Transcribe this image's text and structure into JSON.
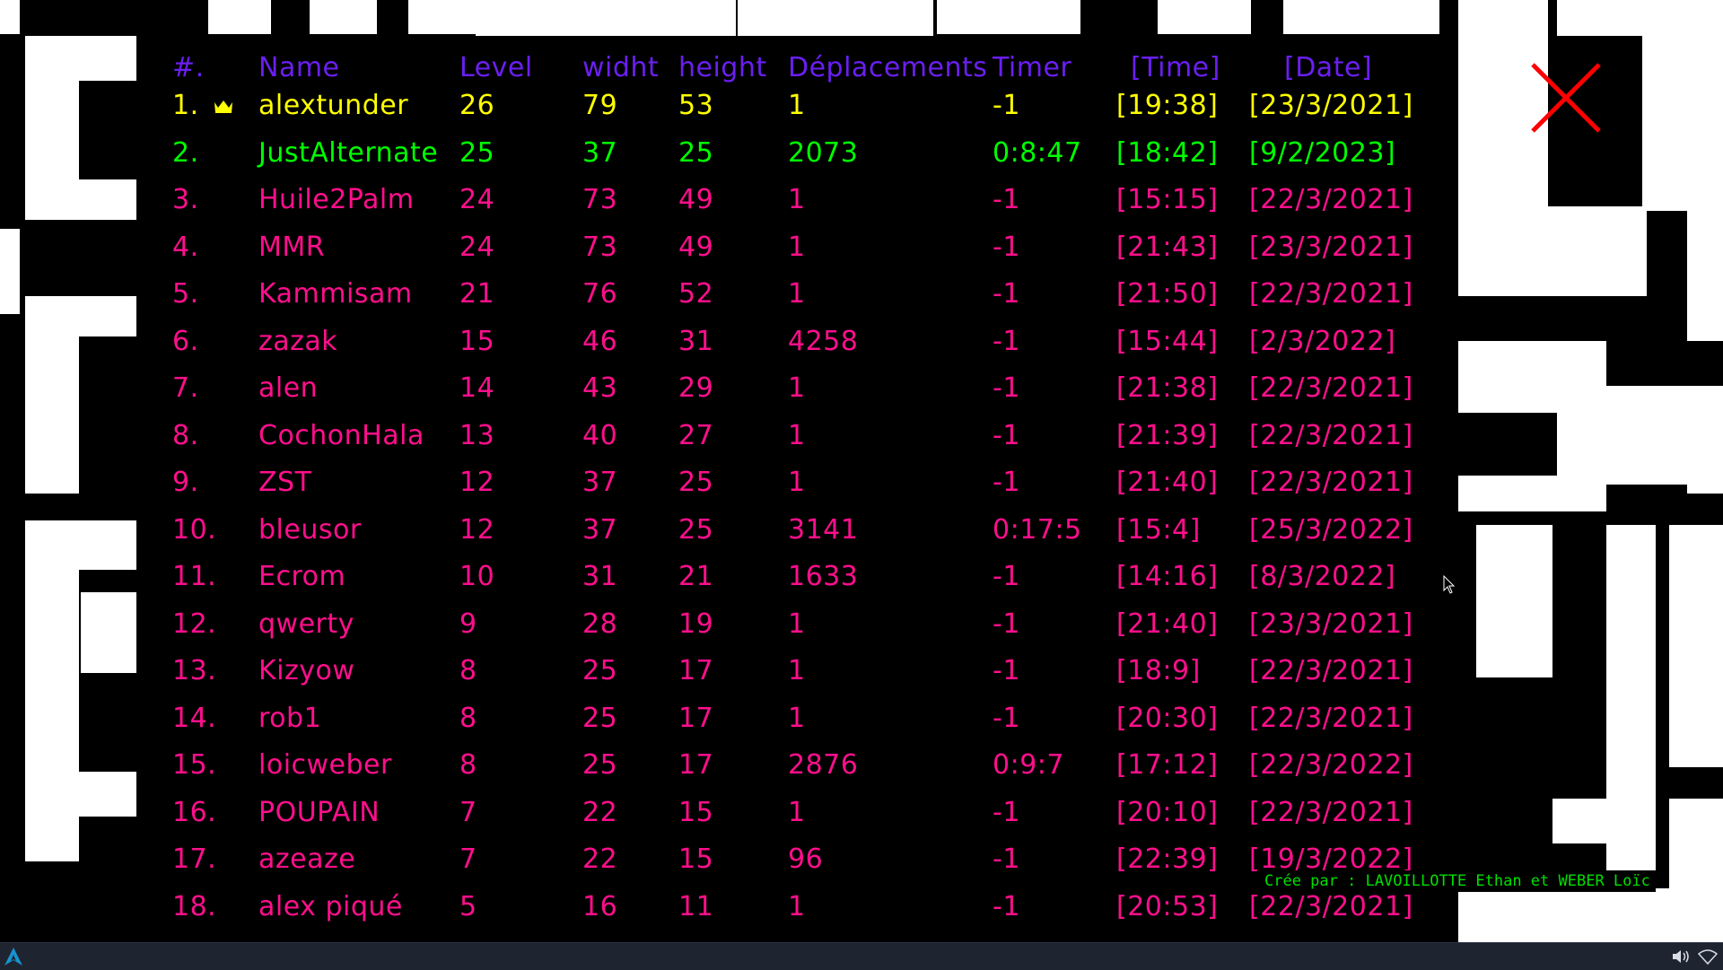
{
  "header": [
    "#.",
    "Name",
    "Level",
    "widht",
    "height",
    "Déplacements",
    "Timer",
    "[Time]",
    "[Date]"
  ],
  "colors": {
    "header": "#6a1ff0",
    "first": "#ffff00",
    "second": "#00ff00",
    "others": "#ff0f8c",
    "close": "#ff0000",
    "credit": "#00e000"
  },
  "rows": [
    {
      "rank": "1.",
      "name": "alextunder",
      "level": "26",
      "width": "79",
      "height": "53",
      "moves": "1",
      "timer": "-1",
      "time": "[19:38]",
      "date": "[23/3/2021]"
    },
    {
      "rank": "2.",
      "name": "JustAlternate",
      "level": "25",
      "width": "37",
      "height": "25",
      "moves": "2073",
      "timer": "0:8:47",
      "time": "[18:42]",
      "date": "[9/2/2023]"
    },
    {
      "rank": "3.",
      "name": "Huile2Palm",
      "level": "24",
      "width": "73",
      "height": "49",
      "moves": "1",
      "timer": "-1",
      "time": "[15:15]",
      "date": "[22/3/2021]"
    },
    {
      "rank": "4.",
      "name": "MMR",
      "level": "24",
      "width": "73",
      "height": "49",
      "moves": "1",
      "timer": "-1",
      "time": "[21:43]",
      "date": "[23/3/2021]"
    },
    {
      "rank": "5.",
      "name": "Kammisam",
      "level": "21",
      "width": "76",
      "height": "52",
      "moves": "1",
      "timer": "-1",
      "time": "[21:50]",
      "date": "[22/3/2021]"
    },
    {
      "rank": "6.",
      "name": "zazak",
      "level": "15",
      "width": "46",
      "height": "31",
      "moves": "4258",
      "timer": "-1",
      "time": "[15:44]",
      "date": "[2/3/2022]"
    },
    {
      "rank": "7.",
      "name": "alen",
      "level": "14",
      "width": "43",
      "height": "29",
      "moves": "1",
      "timer": "-1",
      "time": "[21:38]",
      "date": "[22/3/2021]"
    },
    {
      "rank": "8.",
      "name": "CochonHala",
      "level": "13",
      "width": "40",
      "height": "27",
      "moves": "1",
      "timer": "-1",
      "time": "[21:39]",
      "date": "[22/3/2021]"
    },
    {
      "rank": "9.",
      "name": "ZST",
      "level": "12",
      "width": "37",
      "height": "25",
      "moves": "1",
      "timer": "-1",
      "time": "[21:40]",
      "date": "[22/3/2021]"
    },
    {
      "rank": "10.",
      "name": "bleusor",
      "level": "12",
      "width": "37",
      "height": "25",
      "moves": "3141",
      "timer": "0:17:5",
      "time": "[15:4]",
      "date": "[25/3/2022]"
    },
    {
      "rank": "11.",
      "name": "Ecrom",
      "level": "10",
      "width": "31",
      "height": "21",
      "moves": "1633",
      "timer": "-1",
      "time": "[14:16]",
      "date": "[8/3/2022]"
    },
    {
      "rank": "12.",
      "name": "qwerty",
      "level": "9",
      "width": "28",
      "height": "19",
      "moves": "1",
      "timer": "-1",
      "time": "[21:40]",
      "date": "[23/3/2021]"
    },
    {
      "rank": "13.",
      "name": "Kizyow",
      "level": "8",
      "width": "25",
      "height": "17",
      "moves": "1",
      "timer": "-1",
      "time": "[18:9]",
      "date": "[22/3/2021]"
    },
    {
      "rank": "14.",
      "name": "rob1",
      "level": "8",
      "width": "25",
      "height": "17",
      "moves": "1",
      "timer": "-1",
      "time": "[20:30]",
      "date": "[22/3/2021]"
    },
    {
      "rank": "15.",
      "name": "loicweber",
      "level": "8",
      "width": "25",
      "height": "17",
      "moves": "2876",
      "timer": "0:9:7",
      "time": "[17:12]",
      "date": "[22/3/2022]"
    },
    {
      "rank": "16.",
      "name": "POUPAIN",
      "level": "7",
      "width": "22",
      "height": "15",
      "moves": "1",
      "timer": "-1",
      "time": "[20:10]",
      "date": "[22/3/2021]"
    },
    {
      "rank": "17.",
      "name": "azeaze",
      "level": "7",
      "width": "22",
      "height": "15",
      "moves": "96",
      "timer": "-1",
      "time": "[22:39]",
      "date": "[19/3/2022]"
    },
    {
      "rank": "18.",
      "name": "alex piqué",
      "level": "5",
      "width": "16",
      "height": "11",
      "moves": "1",
      "timer": "-1",
      "time": "[20:53]",
      "date": "[22/3/2021]"
    }
  ],
  "credit": "Crée par : LAVOILLOTTE Ethan et WEBER Loïc",
  "icons": {
    "crown": "crown-icon",
    "close": "close-x-icon",
    "cursor": "mouse-cursor-icon",
    "taskbar_logo": "arch-logo-icon",
    "volume": "volume-icon",
    "network": "network-icon"
  }
}
